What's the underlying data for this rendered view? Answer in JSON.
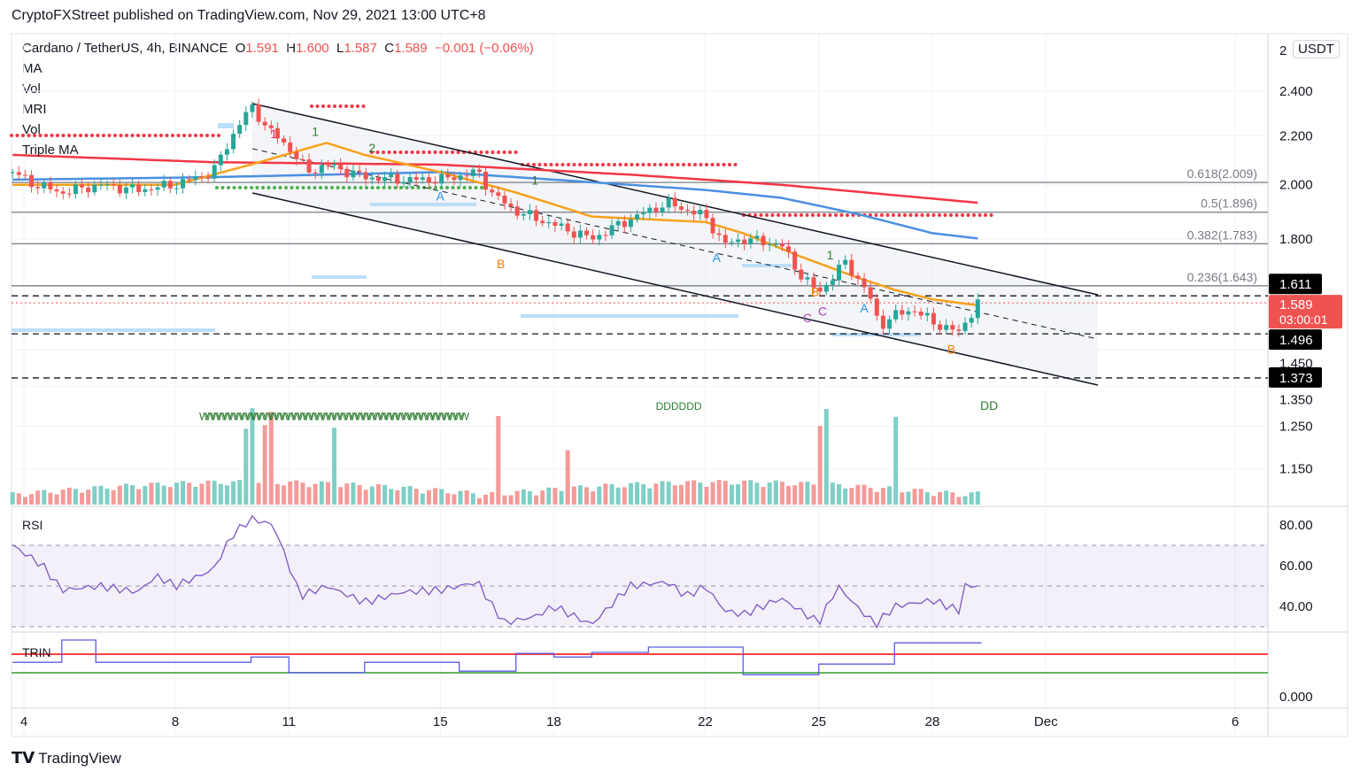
{
  "header": {
    "published": "CryptoFXStreet published on TradingView.com, Nov 29, 2021 13:00 UTC+8"
  },
  "legend": {
    "symbol": "Cardano / TetherUS, 4h, BINANCE",
    "o_label": "O",
    "o": "1.591",
    "h_label": "H",
    "h": "1.600",
    "l_label": "L",
    "l": "1.587",
    "c_label": "C",
    "c": "1.589",
    "change": "−0.001 (−0.06%)",
    "indicators": [
      "MA",
      "Vol",
      "MRI",
      "Vol",
      "Triple MA"
    ]
  },
  "axis": {
    "currency": "USDT",
    "top_partial": "2",
    "current_price": "1.589",
    "countdown": "03:00:01",
    "marked_prices": [
      "1.611",
      "1.496",
      "1.373"
    ]
  },
  "footer": {
    "brand": "TradingView"
  },
  "colors": {
    "up": "#26a69a",
    "down": "#ef5350",
    "ma_fast": "#f7a21b",
    "ma_mid": "#4a90e2",
    "ma_slow": "#f23645",
    "rsi": "#7e57c2"
  },
  "chart_data": {
    "type": "candlestick",
    "title": "Cardano / TetherUS, 4h, BINANCE",
    "x_ticks": [
      {
        "day": 4,
        "label": "4"
      },
      {
        "day": 8,
        "label": "8"
      },
      {
        "day": 11,
        "label": "11"
      },
      {
        "day": 15,
        "label": "15"
      },
      {
        "day": 18,
        "label": "18"
      },
      {
        "day": 22,
        "label": "22"
      },
      {
        "day": 25,
        "label": "25"
      },
      {
        "day": 28,
        "label": "28"
      },
      {
        "day": 31,
        "label": "Dec"
      },
      {
        "day": 36,
        "label": "6"
      }
    ],
    "y_ticks": [
      "2.400",
      "2.200",
      "2.000",
      "1.800",
      "1.450",
      "1.350",
      "1.250",
      "1.150"
    ],
    "y_tick_values": [
      2.4,
      2.2,
      2.0,
      1.8,
      1.45,
      1.35,
      1.25,
      1.15
    ],
    "price_path": [
      [
        3.7,
        2.05
      ],
      [
        4.3,
        2.0
      ],
      [
        5,
        1.97
      ],
      [
        6,
        2.0
      ],
      [
        7,
        1.98
      ],
      [
        8,
        2.0
      ],
      [
        9,
        2.05
      ],
      [
        9.5,
        2.2
      ],
      [
        10,
        2.33
      ],
      [
        10.5,
        2.22
      ],
      [
        11,
        2.15
      ],
      [
        11.5,
        2.05
      ],
      [
        12,
        2.08
      ],
      [
        13,
        2.03
      ],
      [
        14,
        2.02
      ],
      [
        15,
        2.02
      ],
      [
        16,
        2.05
      ],
      [
        16.4,
        1.96
      ],
      [
        17,
        1.9
      ],
      [
        18,
        1.85
      ],
      [
        19,
        1.8
      ],
      [
        20,
        1.87
      ],
      [
        21,
        1.93
      ],
      [
        22,
        1.88
      ],
      [
        22.5,
        1.78
      ],
      [
        23,
        1.8
      ],
      [
        24,
        1.78
      ],
      [
        24.5,
        1.68
      ],
      [
        25,
        1.62
      ],
      [
        25.7,
        1.72
      ],
      [
        26.3,
        1.62
      ],
      [
        26.6,
        1.52
      ],
      [
        27,
        1.55
      ],
      [
        27.5,
        1.57
      ],
      [
        28,
        1.53
      ],
      [
        28.7,
        1.5
      ],
      [
        29.2,
        1.589
      ]
    ],
    "ma_fast": [
      [
        3.7,
        2.0
      ],
      [
        8,
        2.0
      ],
      [
        10,
        2.08
      ],
      [
        12,
        2.17
      ],
      [
        13,
        2.12
      ],
      [
        15,
        2.05
      ],
      [
        17,
        1.97
      ],
      [
        19,
        1.88
      ],
      [
        20.5,
        1.87
      ],
      [
        22,
        1.86
      ],
      [
        23,
        1.82
      ],
      [
        24.5,
        1.74
      ],
      [
        26,
        1.67
      ],
      [
        27,
        1.63
      ],
      [
        28,
        1.6
      ],
      [
        29.3,
        1.58
      ]
    ],
    "ma_mid": [
      [
        3.7,
        2.02
      ],
      [
        9,
        2.03
      ],
      [
        15,
        2.05
      ],
      [
        18,
        2.02
      ],
      [
        22,
        1.98
      ],
      [
        24,
        1.95
      ],
      [
        26,
        1.89
      ],
      [
        28,
        1.82
      ],
      [
        29.3,
        1.8
      ]
    ],
    "ma_slow": [
      [
        3.7,
        2.12
      ],
      [
        9,
        2.09
      ],
      [
        15,
        2.08
      ],
      [
        20,
        2.04
      ],
      [
        24,
        2.0
      ],
      [
        27,
        1.96
      ],
      [
        29.3,
        1.93
      ]
    ],
    "fib_levels": [
      {
        "ratio": "0.618",
        "price": 2.009,
        "label": "0.618(2.009)"
      },
      {
        "ratio": "0.5",
        "price": 1.896,
        "label": "0.5(1.896)"
      },
      {
        "ratio": "0.382",
        "price": 1.783,
        "label": "0.382(1.783)"
      },
      {
        "ratio": "0.236",
        "price": 1.643,
        "label": "0.236(1.643)"
      }
    ],
    "horizontal_levels": [
      1.611,
      1.496,
      1.373
    ],
    "current_price": 1.589,
    "annotations": [
      {
        "text": "1",
        "day": 10.6,
        "price": 2.19,
        "color": "#e91e63"
      },
      {
        "text": "1",
        "day": 11.7,
        "price": 2.2,
        "color": "#2e7d32"
      },
      {
        "text": "2",
        "day": 13.2,
        "price": 2.13,
        "color": "#2e7d32"
      },
      {
        "text": "A",
        "day": 15,
        "price": 1.94,
        "color": "#2196f3"
      },
      {
        "text": "1",
        "day": 17.5,
        "price": 2.0,
        "color": "#2e7d32"
      },
      {
        "text": "B",
        "day": 16.6,
        "price": 1.7,
        "color": "#f57c00"
      },
      {
        "text": "A",
        "day": 22.3,
        "price": 1.72,
        "color": "#2196f3"
      },
      {
        "text": "B",
        "day": 24.9,
        "price": 1.61,
        "color": "#f57c00"
      },
      {
        "text": "C",
        "day": 25.1,
        "price": 1.55,
        "color": "#ab47bc"
      },
      {
        "text": "C",
        "day": 24.7,
        "price": 1.53,
        "color": "#ab47bc"
      },
      {
        "text": "1",
        "day": 25.3,
        "price": 1.73,
        "color": "#2e7d32"
      },
      {
        "text": "A",
        "day": 26.2,
        "price": 1.56,
        "color": "#2196f3"
      },
      {
        "text": "B",
        "day": 28.5,
        "price": 1.44,
        "color": "#f57c00"
      },
      {
        "text": "DDDDDD",
        "day": 21.3,
        "price": 1.29,
        "color": "#2e7d32"
      },
      {
        "text": "DD",
        "day": 29.5,
        "price": 1.29,
        "color": "#2e7d32"
      },
      {
        "text": "WWWWWWWWWWWWWWWWWWWWWWWWWWWWWWWWWWWWWWWWWWWWWW",
        "day": 12.2,
        "price": 1.265,
        "color": "#2e7d32"
      }
    ],
    "rsi": {
      "label": "RSI",
      "ticks": [
        "80.00",
        "60.00",
        "40.00"
      ],
      "tick_values": [
        80,
        60,
        40
      ],
      "band": [
        30,
        70
      ],
      "mid": 50,
      "path": [
        [
          3.7,
          70
        ],
        [
          4.5,
          60
        ],
        [
          5,
          48
        ],
        [
          6,
          50
        ],
        [
          7,
          47
        ],
        [
          7.5,
          55
        ],
        [
          8,
          50
        ],
        [
          9,
          58
        ],
        [
          9.5,
          75
        ],
        [
          10,
          83
        ],
        [
          10.6,
          80
        ],
        [
          11,
          60
        ],
        [
          11.3,
          45
        ],
        [
          12,
          50
        ],
        [
          13,
          42
        ],
        [
          14,
          47
        ],
        [
          15,
          48
        ],
        [
          16,
          52
        ],
        [
          16.3,
          42
        ],
        [
          16.7,
          32
        ],
        [
          17.5,
          35
        ],
        [
          18,
          40
        ],
        [
          19,
          31
        ],
        [
          20,
          50
        ],
        [
          21,
          52
        ],
        [
          21.5,
          45
        ],
        [
          22,
          50
        ],
        [
          22.5,
          38
        ],
        [
          23,
          36
        ],
        [
          24,
          44
        ],
        [
          25,
          32
        ],
        [
          25.5,
          50
        ],
        [
          26,
          40
        ],
        [
          26.5,
          31
        ],
        [
          27,
          40
        ],
        [
          28,
          43
        ],
        [
          28.7,
          38
        ],
        [
          28.8,
          50
        ],
        [
          29.3,
          50
        ]
      ]
    },
    "trin": {
      "label": "TRIN",
      "ticks": [
        "0.000"
      ],
      "red_level": 1.2,
      "green_level": 0.675,
      "steps": [
        [
          3.7,
          0.97
        ],
        [
          5,
          1.6
        ],
        [
          5.9,
          0.97
        ],
        [
          10,
          1.12
        ],
        [
          11,
          0.68
        ],
        [
          13,
          0.97
        ],
        [
          15.5,
          0.72
        ],
        [
          17,
          1.22
        ],
        [
          18,
          1.12
        ],
        [
          19,
          1.25
        ],
        [
          20.5,
          1.4
        ],
        [
          23,
          0.62
        ],
        [
          25,
          0.92
        ],
        [
          27,
          1.52
        ],
        [
          29.3,
          1.52
        ]
      ]
    }
  }
}
